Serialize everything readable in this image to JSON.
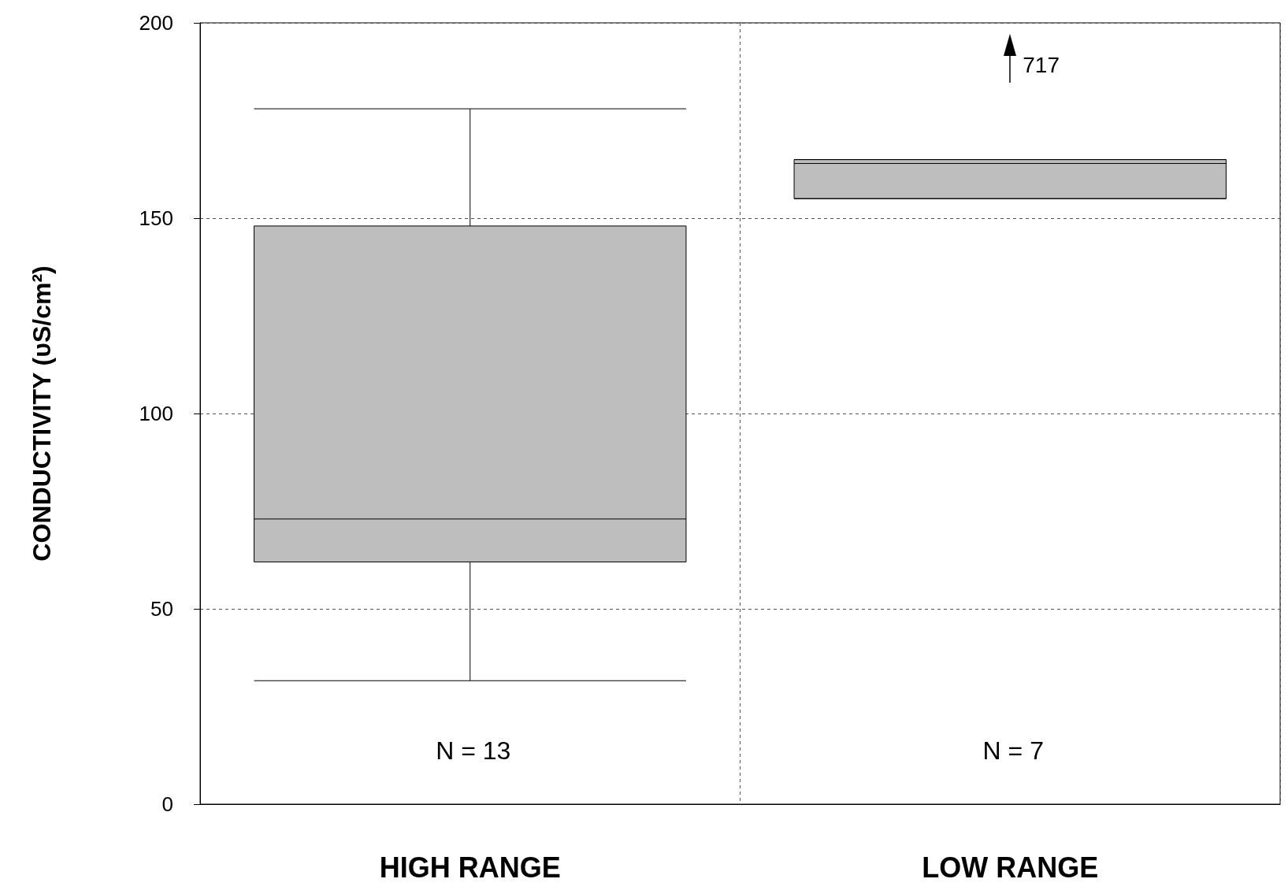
{
  "chart_data": {
    "type": "box",
    "ylabel": "CONDUCTIVITY (υS/cm²)",
    "categories": [
      "HIGH RANGE",
      "LOW RANGE"
    ],
    "boxes": [
      {
        "low": 31.6,
        "q1": 62,
        "median": 73,
        "q3": 148,
        "high": 178
      },
      {
        "low": 155,
        "q1": 155,
        "median": 164,
        "q3": 165,
        "high": 165
      }
    ],
    "color": "#bebebe",
    "ylim": [
      0,
      200
    ],
    "yticks": [
      0,
      50,
      100,
      150,
      200
    ],
    "grid": true,
    "annotations": [
      "N = 13",
      "N = 7",
      "717"
    ]
  }
}
